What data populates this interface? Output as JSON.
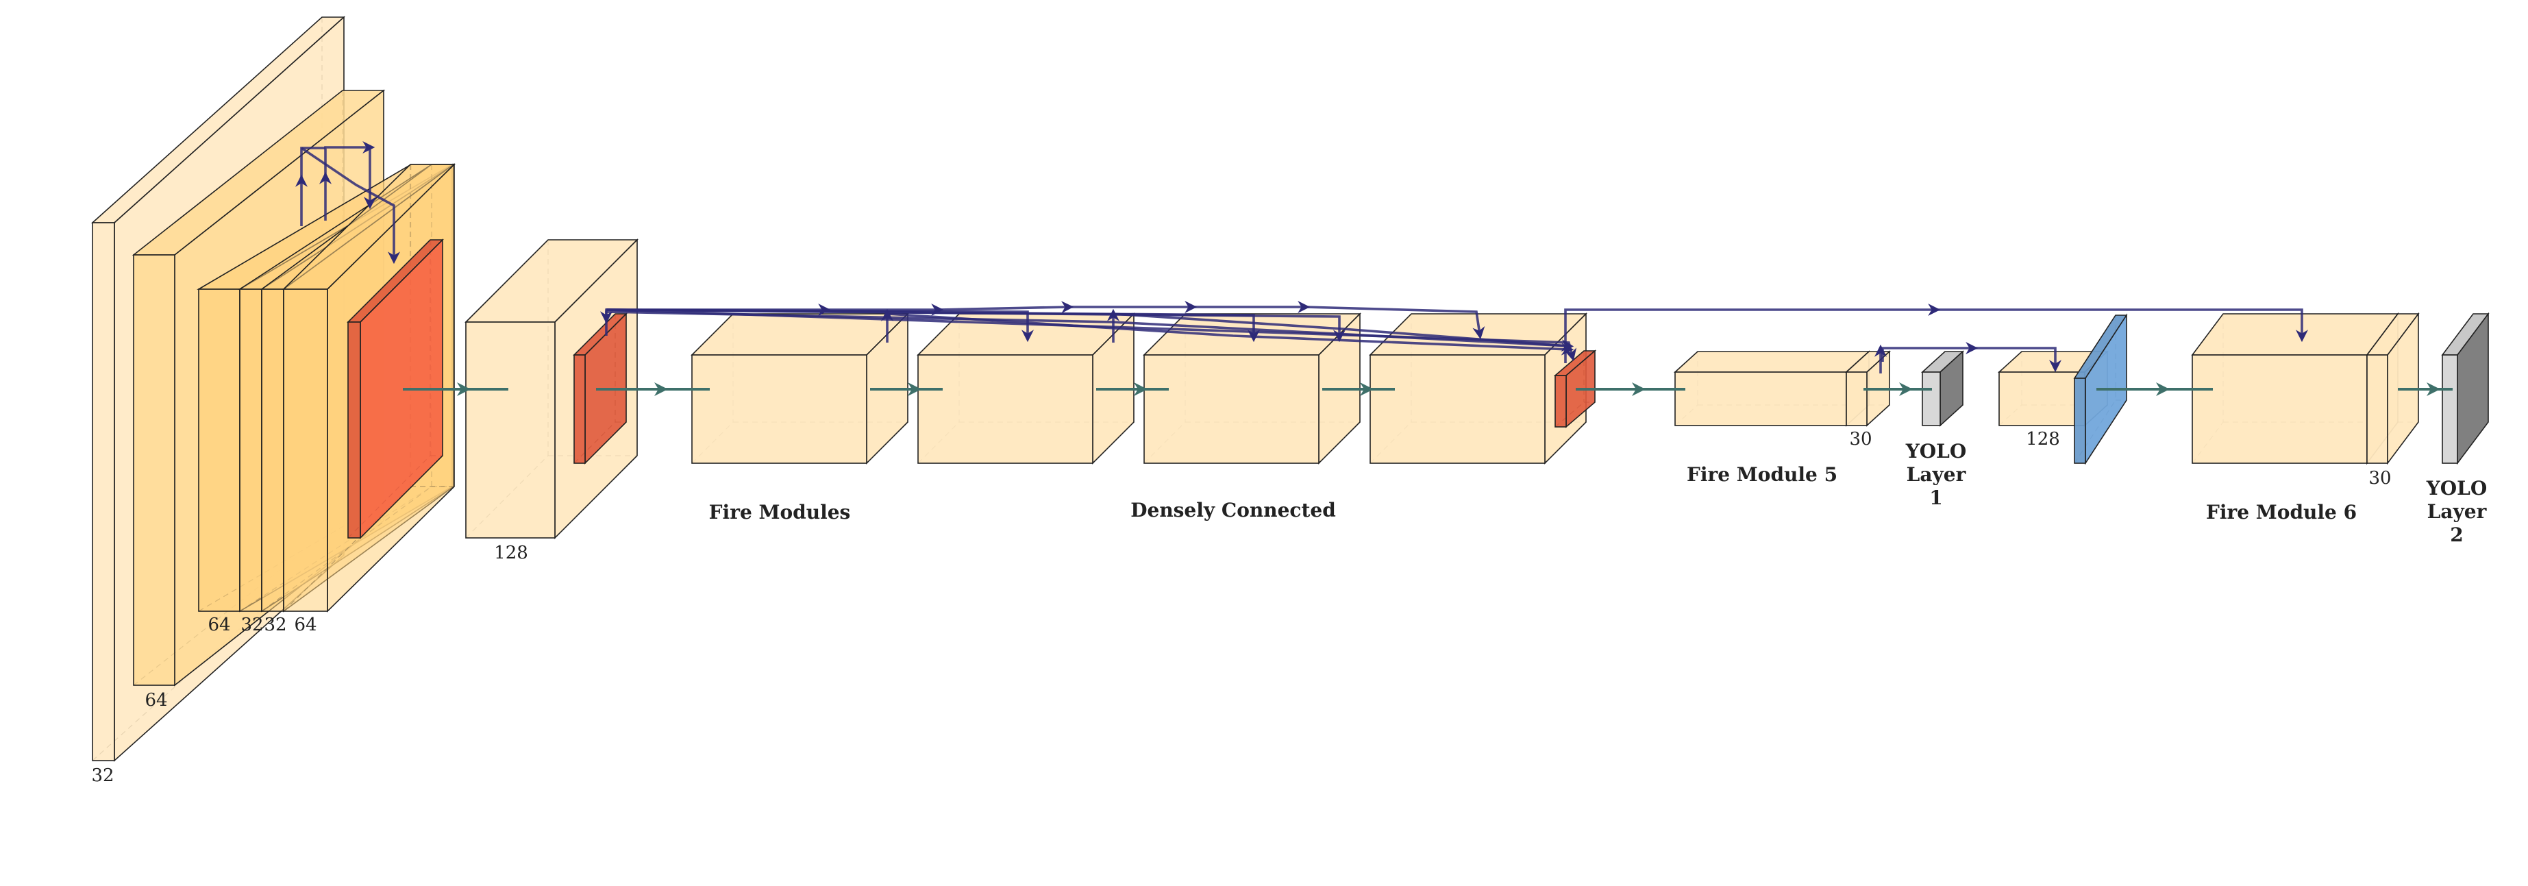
{
  "colors": {
    "conv": "#FFE8BF",
    "conv_deep": "#FFDA94",
    "conv_deeper": "#FFD27E",
    "pool": "#E05A3C",
    "yolo_front": "#D8D8D8",
    "yolo_back": "#808080",
    "upsample": "#6A9BCB",
    "connection": "#2E2A78",
    "flow": "#3E706A",
    "edge": "#222222"
  },
  "labels": {
    "dim_32_input": "32",
    "dim_64_b": "64",
    "dim_64_c": "64",
    "dim_32_d": "32",
    "dim_32_e": "32",
    "dim_64_f": "64",
    "dim_128_a": "128",
    "fire_modules": "Fire Modules",
    "densely_connected": "Densely Connected",
    "fire_module_5": "Fire Module 5",
    "dim_30_a": "30",
    "yolo1_l1": "YOLO",
    "yolo1_l2": "Layer",
    "yolo1_l3": "1",
    "dim_128_b": "128",
    "fire_module_6": "Fire Module 6",
    "dim_30_b": "30",
    "yolo2_l1": "YOLO",
    "yolo2_l2": "Layer",
    "yolo2_l3": "2"
  }
}
